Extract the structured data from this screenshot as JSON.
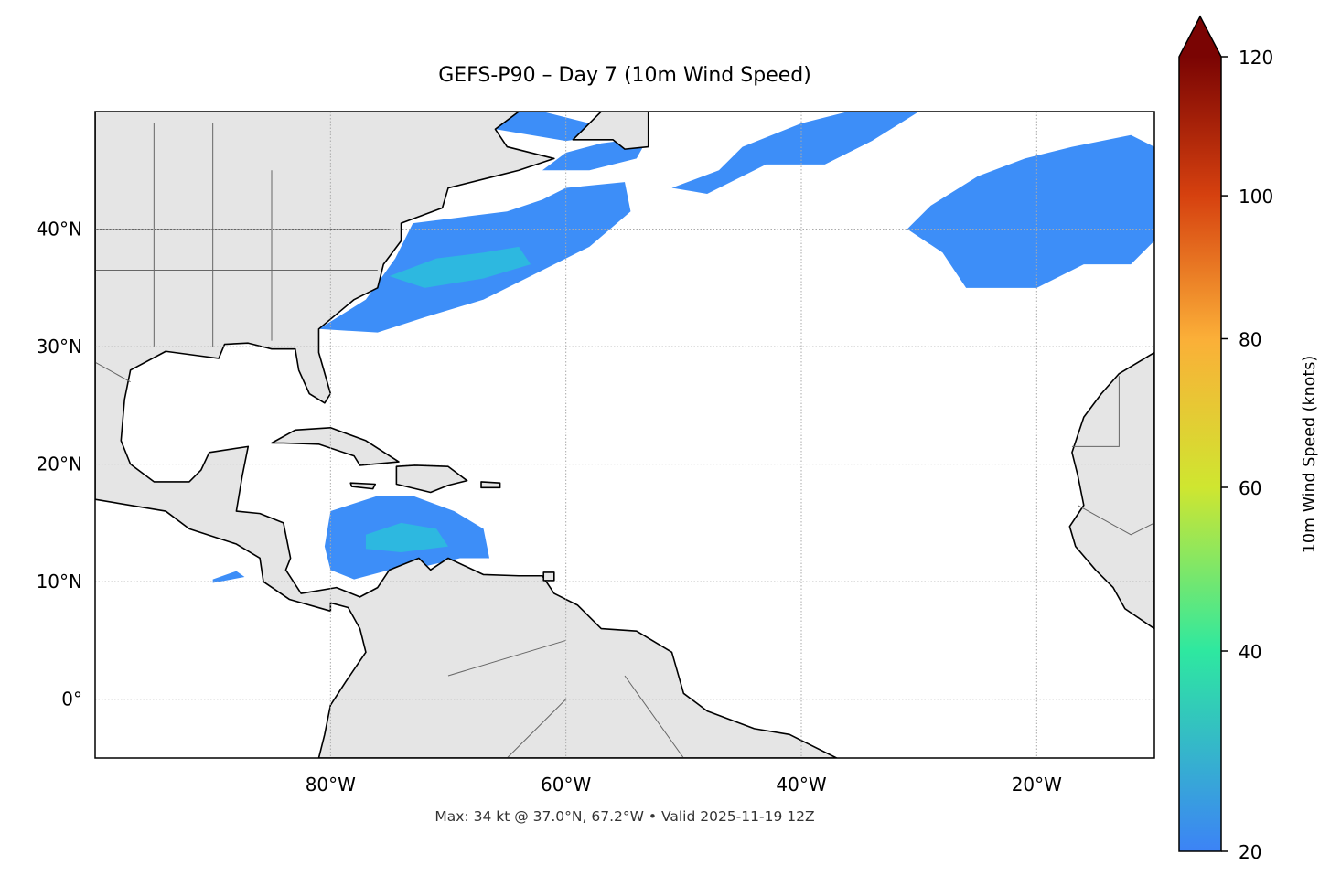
{
  "title": "GEFS-P90 – Day 7 (10m Wind Speed)",
  "footer": "Max: 34 kt @ 37.0°N, 67.2°W • Valid 2025-11-19 12Z",
  "chart_data": {
    "type": "heatmap",
    "title": "GEFS-P90 – Day 7 (10m Wind Speed)",
    "extent": {
      "lon": [
        -100,
        -10
      ],
      "lat": [
        -5,
        50
      ]
    },
    "x_ticks": [
      {
        "value": -80,
        "label": "80°W"
      },
      {
        "value": -60,
        "label": "60°W"
      },
      {
        "value": -40,
        "label": "40°W"
      },
      {
        "value": -20,
        "label": "20°W"
      }
    ],
    "y_ticks": [
      {
        "value": 40,
        "label": "40°N"
      },
      {
        "value": 30,
        "label": "30°N"
      },
      {
        "value": 20,
        "label": "20°N"
      },
      {
        "value": 10,
        "label": "10°N"
      },
      {
        "value": 0,
        "label": "0°"
      }
    ],
    "grid": true,
    "max_point": {
      "value_kt": 34,
      "lat": 37.0,
      "lon": -67.2
    },
    "colorbar": {
      "label": "10m Wind Speed (knots)",
      "colormap": "turbo",
      "extend": "max",
      "range": [
        20,
        120
      ],
      "ticks": [
        {
          "value": 20,
          "label": "20"
        },
        {
          "value": 40,
          "label": "40"
        },
        {
          "value": 60,
          "label": "60"
        },
        {
          "value": 80,
          "label": "80"
        },
        {
          "value": 100,
          "label": "100"
        },
        {
          "value": 120,
          "label": "120"
        }
      ]
    }
  },
  "colors": {
    "land": "#e5e5e5",
    "coast": "#000000",
    "borders": "#666666",
    "wind_low": "#3d8ef8",
    "wind_mid": "#2db8e0"
  }
}
